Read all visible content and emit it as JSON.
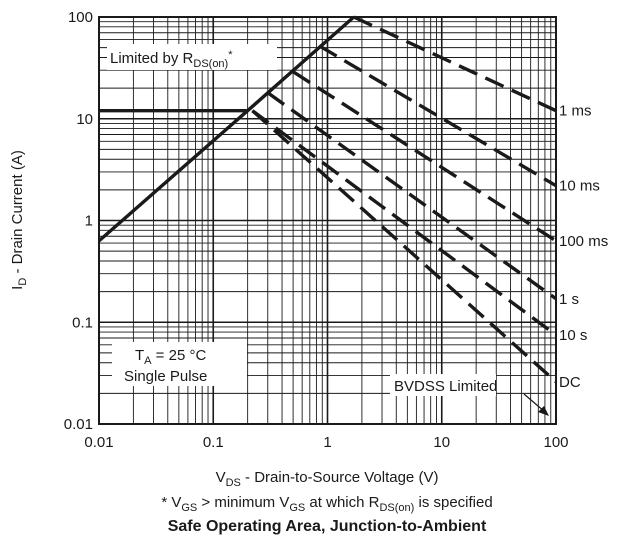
{
  "chart_data": {
    "type": "line",
    "title": "Safe Operating Area, Junction-to-Ambient",
    "footnote": "* V_GS > minimum V_GS at which R_DS(on) is specified",
    "footnote_parts": {
      "star": "* ",
      "v": "V",
      "gs1": "GS",
      "mid": " > minimum V",
      "gs2": "GS",
      "at": " at which R",
      "ds": "DS(on)",
      "end": " is specified"
    },
    "xlabel": "V_DS - Drain-to-Source Voltage (V)",
    "xlabel_parts": {
      "v": "V",
      "sub": "DS",
      "rest": " - Drain-to-Source Voltage (V)"
    },
    "ylabel": "I_D - Drain Current (A)",
    "ylabel_parts": {
      "i": "I",
      "sub": "D",
      "rest": " - Drain Current (A)"
    },
    "x_scale": "log",
    "y_scale": "log",
    "xlim": [
      0.01,
      100
    ],
    "ylim": [
      0.01,
      100
    ],
    "x_ticks": [
      "0.01",
      "0.1",
      "1",
      "10",
      "100"
    ],
    "y_ticks": [
      "0.01",
      "0.1",
      "1",
      "10",
      "100"
    ],
    "grid": true,
    "annotations": {
      "rds_limit": {
        "pre": "Limited by R",
        "sub": "DS(on)",
        "post": "*"
      },
      "ta": {
        "t": "T",
        "sub": "A",
        "rest": " = 25 °C"
      },
      "pulse": "Single Pulse",
      "bvdss": "BVDSS Limited"
    },
    "series": [
      {
        "style": "solid",
        "points": [
          [
            0.01,
            0.63
          ],
          [
            0.2,
            12
          ],
          [
            1.7,
            100
          ]
        ]
      },
      {
        "style": "solid",
        "points": [
          [
            0.01,
            12
          ],
          [
            0.2,
            12
          ]
        ]
      },
      {
        "name": "1 ms",
        "style": "dashed",
        "points": [
          [
            1.7,
            100
          ],
          [
            100,
            12
          ]
        ]
      },
      {
        "name": "10 ms",
        "style": "dashed",
        "points": [
          [
            0.85,
            52
          ],
          [
            100,
            2.2
          ]
        ]
      },
      {
        "name": "100 ms",
        "style": "dashed",
        "points": [
          [
            0.5,
            29
          ],
          [
            100,
            0.63
          ]
        ]
      },
      {
        "name": "1 s",
        "style": "dashed",
        "points": [
          [
            0.3,
            18
          ],
          [
            100,
            0.17
          ]
        ]
      },
      {
        "name": "10 s",
        "style": "dashed",
        "points": [
          [
            0.22,
            12
          ],
          [
            100,
            0.075
          ]
        ]
      },
      {
        "name": "DC",
        "style": "dashed",
        "points": [
          [
            0.22,
            12
          ],
          [
            100,
            0.026
          ]
        ]
      }
    ]
  }
}
